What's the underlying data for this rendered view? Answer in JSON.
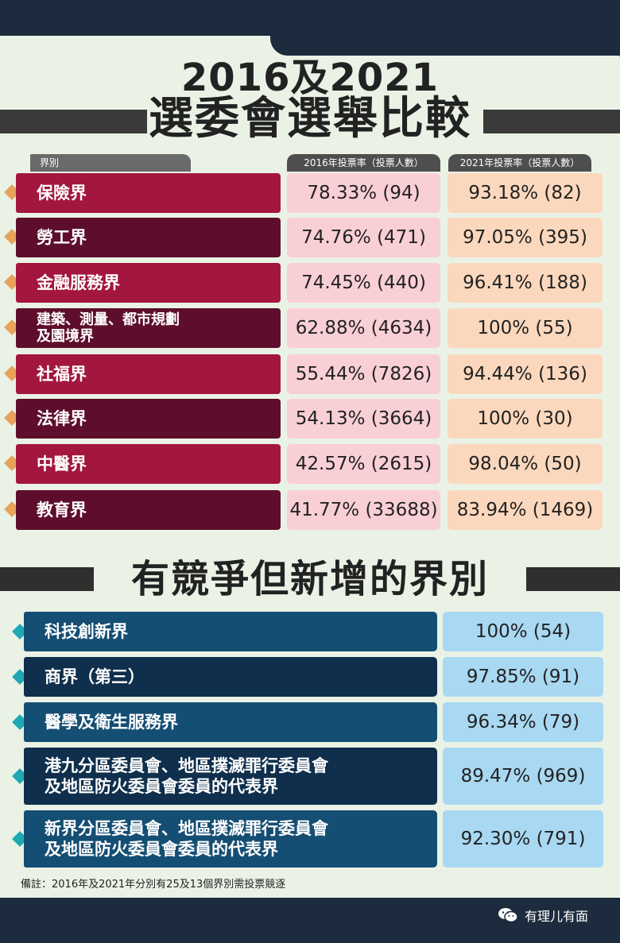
{
  "title": {
    "line1": "2016及2021",
    "line2": "選委會選舉比較"
  },
  "table": {
    "header_label": "界別",
    "header_2016": "2016年投票率（投票人數）",
    "header_2021": "2021年投票率（投票人數）",
    "rows": [
      {
        "name": "保險界",
        "v2016": "78.33% (94)",
        "v2021": "93.18% (82)"
      },
      {
        "name": "勞工界",
        "v2016": "74.76% (471)",
        "v2021": "97.05% (395)"
      },
      {
        "name": "金融服務界",
        "v2016": "74.45% (440)",
        "v2021": "96.41% (188)"
      },
      {
        "name": "建築、測量、都市規劃\n及園境界",
        "v2016": "62.88% (4634)",
        "v2021": "100% (55)"
      },
      {
        "name": "社福界",
        "v2016": "55.44% (7826)",
        "v2021": "94.44% (136)"
      },
      {
        "name": "法律界",
        "v2016": "54.13% (3664)",
        "v2021": "100% (30)"
      },
      {
        "name": "中醫界",
        "v2016": "42.57% (2615)",
        "v2021": "98.04% (50)"
      },
      {
        "name": "教育界",
        "v2016": "41.77% (33688)",
        "v2021": "83.94% (1469)"
      }
    ]
  },
  "section2": {
    "title": "有競爭但新增的界別",
    "rows": [
      {
        "name": "科技創新界",
        "value": "100% (54)"
      },
      {
        "name": "商界（第三）",
        "value": "97.85% (91)"
      },
      {
        "name": "醫學及衛生服務界",
        "value": "96.34% (79)"
      },
      {
        "name": "港九分區委員會、地區撲滅罪行委員會\n及地區防火委員會委員的代表界",
        "value": "89.47% (969)"
      },
      {
        "name": "新界分區委員會、地區撲滅罪行委員會\n及地區防火委員會委員的代表界",
        "value": "92.30% (791)"
      }
    ]
  },
  "note": "備註：2016年及2021年分別有25及13個界別需投票競逐",
  "watermark": {
    "text": "有理儿有面",
    "icon": "wechat-icon"
  },
  "colors": {
    "crimson": "#a3163e",
    "maroon": "#5e0e2c",
    "pink_cell": "#f9cfd6",
    "peach_cell": "#fbd8bd",
    "navy_light": "#154e73",
    "navy_dark": "#0f2f4c",
    "blue_cell": "#a9d8f2",
    "diamond_orange": "#e7a25c",
    "diamond_teal": "#1fa9b2",
    "panel": "#eaf2e6",
    "dark_bg": "#1c2b3e"
  }
}
